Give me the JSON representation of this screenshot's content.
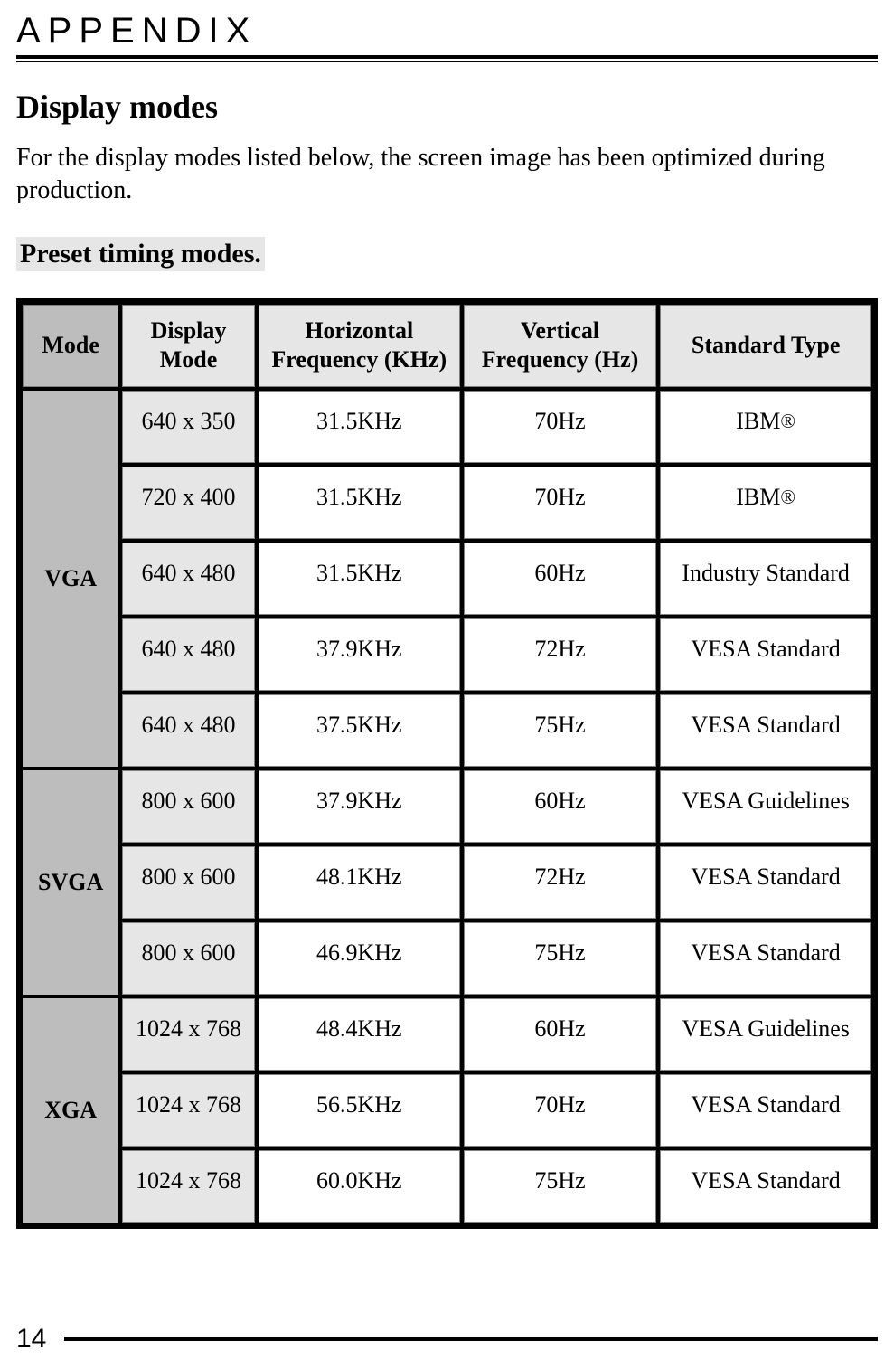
{
  "header": {
    "label": "APPENDIX"
  },
  "section": {
    "title": "Display modes",
    "intro": "For the display modes listed below, the screen image has been optimized during production.",
    "subsection_title": "Preset timing modes."
  },
  "table": {
    "columns": {
      "mode": "Mode",
      "display_mode_l1": "Display",
      "display_mode_l2": "Mode",
      "hfreq_l1": "Horizontal",
      "hfreq_l2": "Frequency (KHz)",
      "vfreq_l1": "Vertical",
      "vfreq_l2": "Frequency (Hz)",
      "standard": "Standard Type"
    },
    "colors": {
      "header_bg": "#e6e6e6",
      "mode_bg": "#bdbdbd",
      "dm_bg": "#e6e6e6",
      "cell_bg": "#ffffff",
      "grid_bg": "#000000"
    },
    "groups": [
      {
        "mode": "VGA",
        "rows": [
          {
            "dm": "640 x 350",
            "hf": "31.5KHz",
            "vf": "70Hz",
            "st": "IBM",
            "registered": true
          },
          {
            "dm": "720 x 400",
            "hf": "31.5KHz",
            "vf": "70Hz",
            "st": "IBM",
            "registered": true
          },
          {
            "dm": "640 x 480",
            "hf": "31.5KHz",
            "vf": "60Hz",
            "st": "Industry Standard",
            "registered": false
          },
          {
            "dm": "640 x 480",
            "hf": "37.9KHz",
            "vf": "72Hz",
            "st": "VESA Standard",
            "registered": false
          },
          {
            "dm": "640 x 480",
            "hf": "37.5KHz",
            "vf": "75Hz",
            "st": "VESA Standard",
            "registered": false
          }
        ]
      },
      {
        "mode": "SVGA",
        "rows": [
          {
            "dm": "800 x 600",
            "hf": "37.9KHz",
            "vf": "60Hz",
            "st": "VESA Guidelines",
            "registered": false
          },
          {
            "dm": "800 x 600",
            "hf": "48.1KHz",
            "vf": "72Hz",
            "st": "VESA Standard",
            "registered": false
          },
          {
            "dm": "800 x 600",
            "hf": "46.9KHz",
            "vf": "75Hz",
            "st": "VESA Standard",
            "registered": false
          }
        ]
      },
      {
        "mode": "XGA",
        "rows": [
          {
            "dm": "1024 x 768",
            "hf": "48.4KHz",
            "vf": "60Hz",
            "st": "VESA Guidelines",
            "registered": false
          },
          {
            "dm": "1024 x 768",
            "hf": "56.5KHz",
            "vf": "70Hz",
            "st": "VESA Standard",
            "registered": false
          },
          {
            "dm": "1024 x 768",
            "hf": "60.0KHz",
            "vf": "75Hz",
            "st": "VESA Standard",
            "registered": false
          }
        ]
      }
    ]
  },
  "footer": {
    "page_number": "14"
  }
}
